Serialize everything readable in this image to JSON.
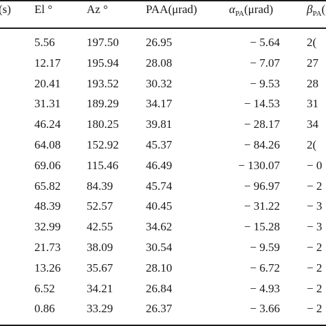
{
  "table": {
    "headers": {
      "c0": "(s)",
      "c1": "El °",
      "c2": "Az °",
      "c3": "PAA(μrad)",
      "c4_sym": "α",
      "c4_sub": "PA",
      "c4_unit": "(μrad)",
      "c5_sym": "β",
      "c5_sub": "PA",
      "c5_unit": "("
    },
    "rows": [
      {
        "el": "5.56",
        "az": "197.50",
        "paa": "26.95",
        "alpha": "− 5.64",
        "beta": "2("
      },
      {
        "el": "12.17",
        "az": "195.94",
        "paa": "28.08",
        "alpha": "− 7.07",
        "beta": "27"
      },
      {
        "el": "20.41",
        "az": "193.52",
        "paa": "30.32",
        "alpha": "− 9.53",
        "beta": "28"
      },
      {
        "el": "31.31",
        "az": "189.29",
        "paa": "34.17",
        "alpha": "− 14.53",
        "beta": "31"
      },
      {
        "el": "46.24",
        "az": "180.25",
        "paa": "39.81",
        "alpha": "− 28.17",
        "beta": "34"
      },
      {
        "el": "64.08",
        "az": "152.92",
        "paa": "45.37",
        "alpha": "− 84.26",
        "beta": "2("
      },
      {
        "el": "69.06",
        "az": "115.46",
        "paa": "46.49",
        "alpha": "− 130.07",
        "beta": "− 0"
      },
      {
        "el": "65.82",
        "az": "84.39",
        "paa": "45.74",
        "alpha": "− 96.97",
        "beta": "− 2"
      },
      {
        "el": "48.39",
        "az": "52.57",
        "paa": "40.45",
        "alpha": "− 31.22",
        "beta": "− 3"
      },
      {
        "el": "32.99",
        "az": "42.55",
        "paa": "34.62",
        "alpha": "− 15.28",
        "beta": "− 3"
      },
      {
        "el": "21.73",
        "az": "38.09",
        "paa": "30.54",
        "alpha": "− 9.59",
        "beta": "− 2"
      },
      {
        "el": "13.26",
        "az": "35.67",
        "paa": "28.10",
        "alpha": "− 6.72",
        "beta": "− 2"
      },
      {
        "el": "6.52",
        "az": "34.21",
        "paa": "26.84",
        "alpha": "− 4.93",
        "beta": "− 2"
      },
      {
        "el": "0.86",
        "az": "33.29",
        "paa": "26.37",
        "alpha": "− 3.66",
        "beta": "− 2"
      }
    ]
  }
}
